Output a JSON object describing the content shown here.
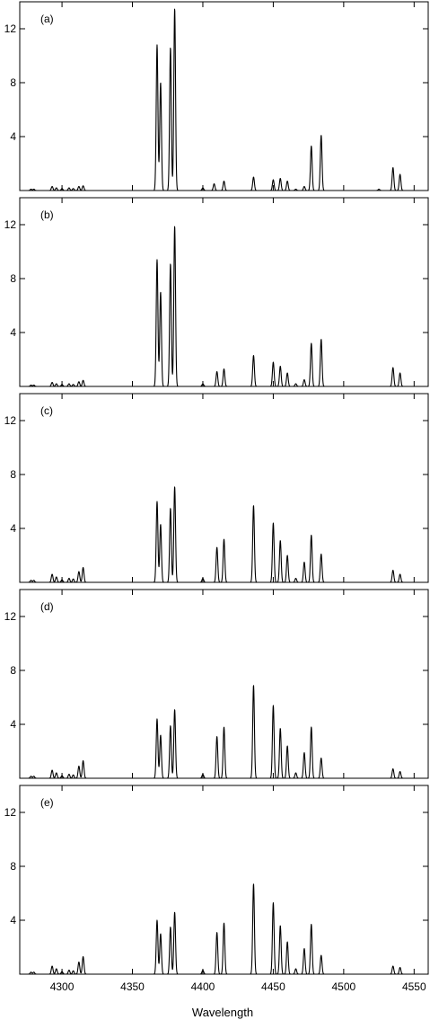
{
  "chart_data": {
    "type": "line",
    "xlabel": "Wavelength",
    "xlim": [
      4270,
      4560
    ],
    "x_ticks": [
      "4300",
      "4350",
      "4400",
      "4450",
      "4500",
      "4550"
    ],
    "y_ticks": [
      "4",
      "8",
      "12"
    ],
    "ylim": [
      0,
      14
    ],
    "line_color": "#000000",
    "peak_width": 0.6,
    "panels": [
      {
        "label": "(a)",
        "peaks": [
          [
            4278,
            0.1
          ],
          [
            4280,
            0.1
          ],
          [
            4293,
            0.3
          ],
          [
            4296,
            0.2
          ],
          [
            4300,
            0.15
          ],
          [
            4305,
            0.2
          ],
          [
            4308,
            0.15
          ],
          [
            4312,
            0.3
          ],
          [
            4315,
            0.35
          ],
          [
            4367.5,
            10.8
          ],
          [
            4370,
            8.0
          ],
          [
            4377,
            10.6
          ],
          [
            4380,
            13.5
          ],
          [
            4400,
            0.2
          ],
          [
            4408,
            0.5
          ],
          [
            4415,
            0.7
          ],
          [
            4436,
            1.0
          ],
          [
            4450,
            0.8
          ],
          [
            4455,
            0.9
          ],
          [
            4460,
            0.7
          ],
          [
            4466,
            0.1
          ],
          [
            4472,
            0.3
          ],
          [
            4477,
            3.3
          ],
          [
            4484,
            4.1
          ],
          [
            4525,
            0.1
          ],
          [
            4535,
            1.7
          ],
          [
            4540,
            1.2
          ]
        ]
      },
      {
        "label": "(b)",
        "peaks": [
          [
            4278,
            0.1
          ],
          [
            4280,
            0.1
          ],
          [
            4293,
            0.3
          ],
          [
            4296,
            0.2
          ],
          [
            4300,
            0.15
          ],
          [
            4305,
            0.2
          ],
          [
            4308,
            0.15
          ],
          [
            4312,
            0.35
          ],
          [
            4315,
            0.45
          ],
          [
            4367.5,
            9.4
          ],
          [
            4370,
            7.0
          ],
          [
            4377,
            9.1
          ],
          [
            4380,
            11.9
          ],
          [
            4400,
            0.2
          ],
          [
            4410,
            1.1
          ],
          [
            4415,
            1.3
          ],
          [
            4436,
            2.3
          ],
          [
            4450,
            1.8
          ],
          [
            4455,
            1.5
          ],
          [
            4460,
            1.0
          ],
          [
            4466,
            0.2
          ],
          [
            4472,
            0.5
          ],
          [
            4477,
            3.2
          ],
          [
            4484,
            3.5
          ],
          [
            4535,
            1.4
          ],
          [
            4540,
            1.0
          ]
        ]
      },
      {
        "label": "(c)",
        "peaks": [
          [
            4278,
            0.15
          ],
          [
            4280,
            0.15
          ],
          [
            4293,
            0.6
          ],
          [
            4296,
            0.4
          ],
          [
            4300,
            0.2
          ],
          [
            4305,
            0.3
          ],
          [
            4308,
            0.25
          ],
          [
            4312,
            0.8
          ],
          [
            4315,
            1.1
          ],
          [
            4367.5,
            6.0
          ],
          [
            4370,
            4.3
          ],
          [
            4377,
            5.5
          ],
          [
            4380,
            7.1
          ],
          [
            4400,
            0.3
          ],
          [
            4410,
            2.6
          ],
          [
            4415,
            3.2
          ],
          [
            4436,
            5.7
          ],
          [
            4450,
            4.4
          ],
          [
            4455,
            3.1
          ],
          [
            4460,
            2.0
          ],
          [
            4466,
            0.3
          ],
          [
            4472,
            1.5
          ],
          [
            4477,
            3.5
          ],
          [
            4484,
            2.1
          ],
          [
            4535,
            0.9
          ],
          [
            4540,
            0.6
          ]
        ]
      },
      {
        "label": "(d)",
        "peaks": [
          [
            4278,
            0.15
          ],
          [
            4280,
            0.15
          ],
          [
            4293,
            0.6
          ],
          [
            4296,
            0.4
          ],
          [
            4300,
            0.2
          ],
          [
            4305,
            0.3
          ],
          [
            4308,
            0.25
          ],
          [
            4312,
            0.9
          ],
          [
            4315,
            1.3
          ],
          [
            4367.5,
            4.4
          ],
          [
            4370,
            3.2
          ],
          [
            4377,
            3.9
          ],
          [
            4380,
            5.1
          ],
          [
            4400,
            0.3
          ],
          [
            4410,
            3.1
          ],
          [
            4415,
            3.8
          ],
          [
            4436,
            6.9
          ],
          [
            4450,
            5.4
          ],
          [
            4455,
            3.7
          ],
          [
            4460,
            2.4
          ],
          [
            4466,
            0.4
          ],
          [
            4472,
            1.9
          ],
          [
            4477,
            3.8
          ],
          [
            4484,
            1.5
          ],
          [
            4535,
            0.7
          ],
          [
            4540,
            0.5
          ]
        ]
      },
      {
        "label": "(e)",
        "peaks": [
          [
            4278,
            0.15
          ],
          [
            4280,
            0.15
          ],
          [
            4293,
            0.6
          ],
          [
            4296,
            0.4
          ],
          [
            4300,
            0.2
          ],
          [
            4305,
            0.3
          ],
          [
            4308,
            0.25
          ],
          [
            4312,
            0.9
          ],
          [
            4315,
            1.3
          ],
          [
            4367.5,
            4.0
          ],
          [
            4370,
            3.0
          ],
          [
            4377,
            3.5
          ],
          [
            4380,
            4.6
          ],
          [
            4400,
            0.3
          ],
          [
            4410,
            3.1
          ],
          [
            4415,
            3.8
          ],
          [
            4436,
            6.7
          ],
          [
            4450,
            5.3
          ],
          [
            4455,
            3.6
          ],
          [
            4460,
            2.4
          ],
          [
            4466,
            0.4
          ],
          [
            4472,
            1.9
          ],
          [
            4477,
            3.7
          ],
          [
            4484,
            1.4
          ],
          [
            4535,
            0.6
          ],
          [
            4540,
            0.5
          ]
        ]
      }
    ]
  }
}
